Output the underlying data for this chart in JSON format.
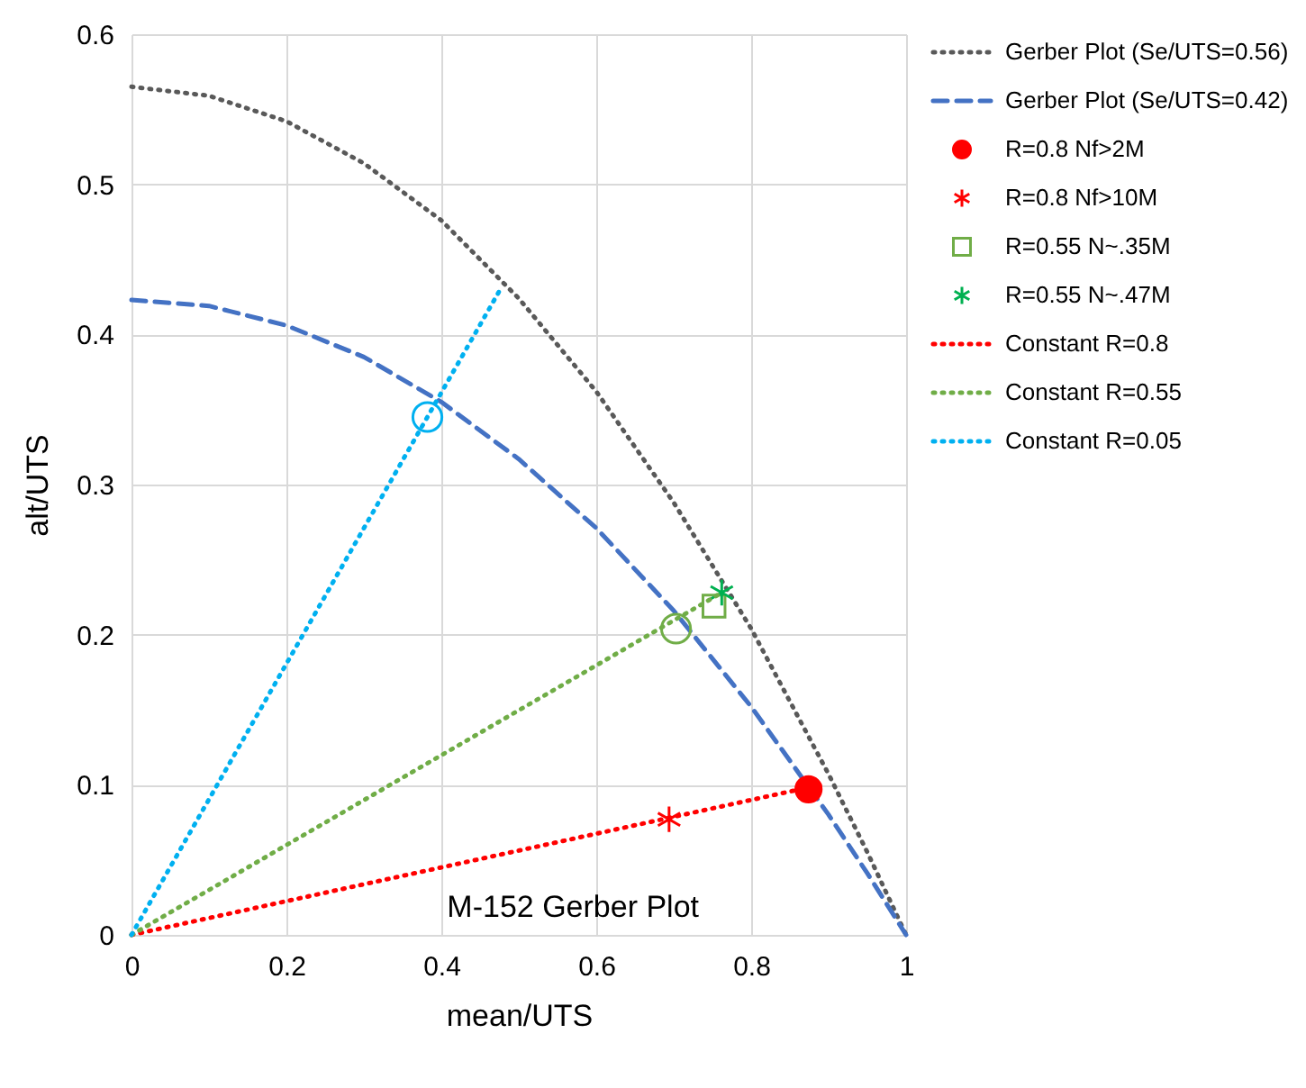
{
  "chart_data": {
    "type": "scatter",
    "title": "M-152 Gerber Plot",
    "xlabel": "mean/UTS",
    "ylabel": "alt/UTS",
    "xlim": [
      0,
      1
    ],
    "ylim": [
      0,
      0.6
    ],
    "xticks": [
      0,
      0.2,
      0.4,
      0.6,
      0.8,
      1
    ],
    "yticks": [
      0,
      0.1,
      0.2,
      0.3,
      0.4,
      0.5,
      0.6
    ],
    "grid": true,
    "legend": "right",
    "series": [
      {
        "name": "Gerber Plot (Se/UTS=0.56)",
        "type": "line",
        "line_style": "dotted",
        "marker": "none",
        "color": "#595959",
        "x": [
          0,
          0.1,
          0.2,
          0.3,
          0.4,
          0.5,
          0.6,
          0.7,
          0.8,
          0.9,
          0.95,
          1
        ],
        "values": [
          0.565,
          0.559,
          0.542,
          0.514,
          0.476,
          0.424,
          0.362,
          0.288,
          0.204,
          0.107,
          0.055,
          0
        ]
      },
      {
        "name": "Gerber Plot (Se/UTS=0.42)",
        "type": "line",
        "line_style": "dashed",
        "marker": "none",
        "color": "#4472c4",
        "x": [
          0,
          0.1,
          0.2,
          0.3,
          0.4,
          0.5,
          0.6,
          0.7,
          0.8,
          0.9,
          0.95,
          1
        ],
        "values": [
          0.423,
          0.419,
          0.406,
          0.385,
          0.355,
          0.317,
          0.271,
          0.216,
          0.152,
          0.08,
          0.041,
          0
        ]
      },
      {
        "name": "R=0.8 Nf>2M",
        "marker": "circle",
        "color": "#ff0000",
        "x": [
          0.874
        ],
        "values": [
          0.097
        ]
      },
      {
        "name": "R=0.8 Nf>10M",
        "marker": "cross",
        "color": "#ff0000",
        "x": [
          0.694
        ],
        "values": [
          0.077
        ]
      },
      {
        "name": "R=0.55 N~.35M",
        "marker": "square",
        "color": "#70ad47",
        "x": [
          0.752
        ],
        "values": [
          0.219
        ]
      },
      {
        "name": "R=0.55 N~.47M",
        "marker": "cross",
        "color": "#00b050",
        "x": [
          0.762
        ],
        "values": [
          0.228
        ]
      },
      {
        "name": "Constant R=0.8",
        "type": "line",
        "line_style": "dotted",
        "marker": "none",
        "color": "#ff0000",
        "x": [
          0,
          0.89
        ],
        "values": [
          0,
          0.1
        ]
      },
      {
        "name": "Constant R=0.55",
        "type": "line",
        "line_style": "dotted",
        "marker": "none",
        "color": "#70ad47",
        "x": [
          0,
          0.762
        ],
        "values": [
          0,
          0.228
        ]
      },
      {
        "name": "Constant R=0.05",
        "type": "line",
        "line_style": "dotted",
        "marker": "none",
        "color": "#00b0f0",
        "x": [
          0,
          0.475
        ],
        "values": [
          0,
          0.429
        ]
      },
      {
        "marker": "circle",
        "color": "#00b0f0",
        "x": [
          0.382
        ],
        "values": [
          0.345
        ]
      },
      {
        "marker": "circle",
        "color": "#70ad47",
        "x": [
          0.703
        ],
        "values": [
          0.204
        ]
      }
    ]
  }
}
